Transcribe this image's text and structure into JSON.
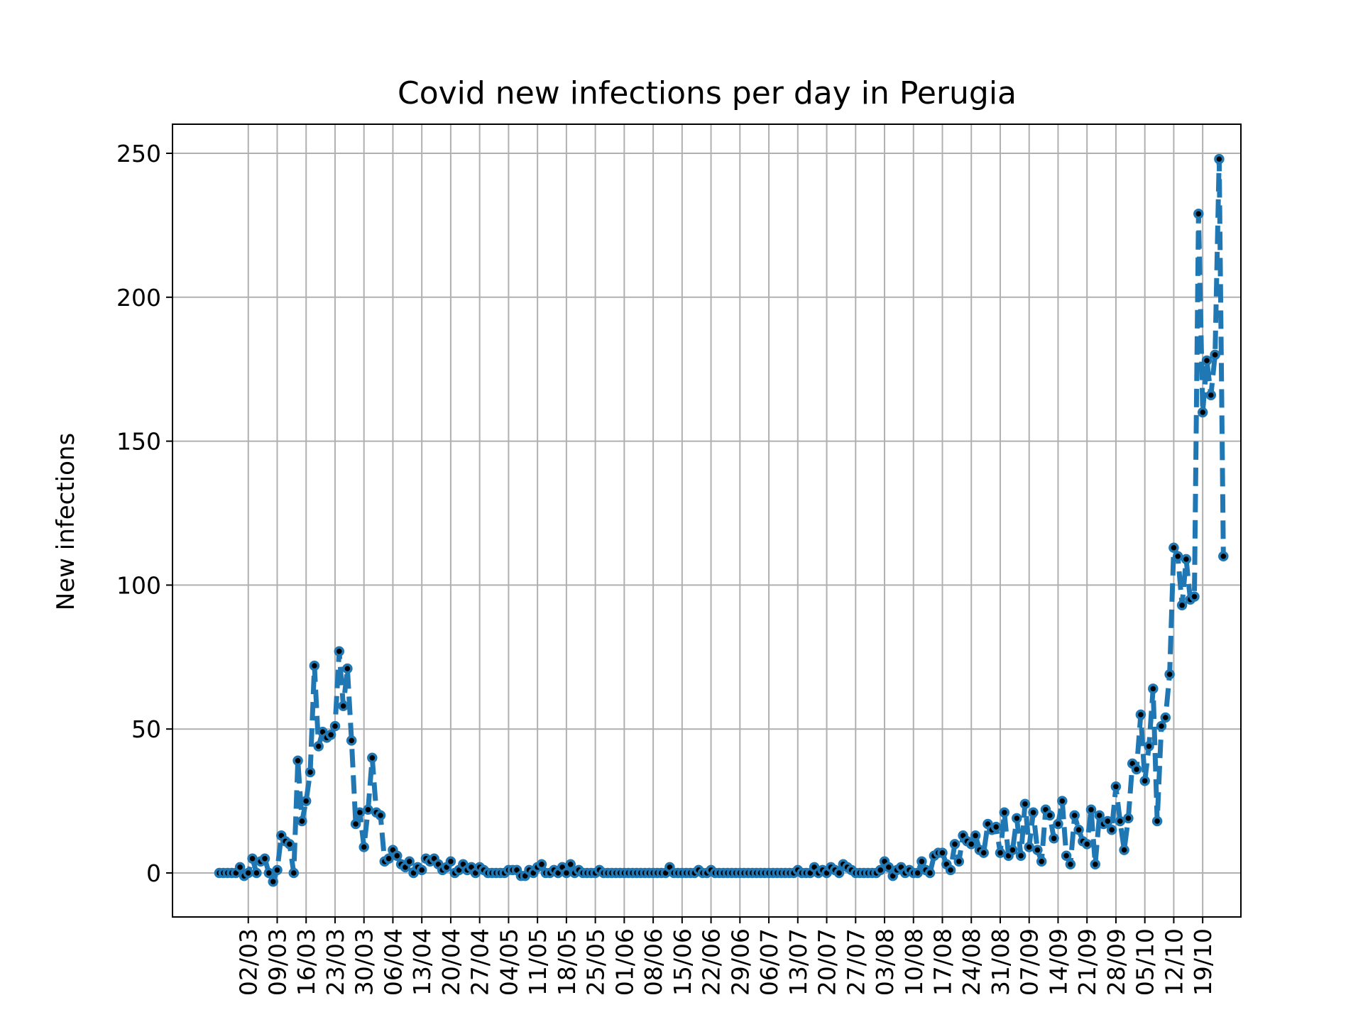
{
  "chart_data": {
    "type": "line",
    "title": "Covid new infections per day in Perugia",
    "xlabel": "",
    "ylabel": "New infections",
    "ylim": [
      -15,
      260
    ],
    "yticks": [
      0,
      50,
      100,
      150,
      200,
      250
    ],
    "grid": true,
    "x_start_date": "2020-02-24",
    "x_ticks": [
      "02/03",
      "09/03",
      "16/03",
      "23/03",
      "30/03",
      "06/04",
      "13/04",
      "20/04",
      "27/04",
      "04/05",
      "11/05",
      "18/05",
      "25/05",
      "01/06",
      "08/06",
      "15/06",
      "22/06",
      "29/06",
      "06/07",
      "13/07",
      "20/07",
      "27/07",
      "03/08",
      "10/08",
      "17/08",
      "24/08",
      "31/08",
      "07/09",
      "14/09",
      "21/09",
      "28/09",
      "05/10",
      "12/10",
      "19/10"
    ],
    "x_tick_offsets": [
      7,
      14,
      21,
      28,
      35,
      42,
      49,
      56,
      63,
      70,
      77,
      84,
      91,
      98,
      105,
      112,
      119,
      126,
      133,
      140,
      147,
      154,
      161,
      168,
      175,
      182,
      189,
      196,
      203,
      210,
      217,
      224,
      231,
      238
    ],
    "series": [
      {
        "name": "",
        "color": "#1f77b4",
        "marker_color": "#000000",
        "linestyle": "dashed",
        "values": [
          0,
          0,
          0,
          0,
          0,
          2,
          -1,
          0,
          5,
          0,
          4,
          5,
          0,
          -3,
          1,
          13,
          11,
          10,
          0,
          39,
          18,
          25,
          35,
          72,
          44,
          49,
          47,
          48,
          51,
          77,
          58,
          71,
          46,
          17,
          21,
          9,
          22,
          40,
          21,
          20,
          4,
          5,
          8,
          6,
          3,
          2,
          4,
          0,
          2,
          1,
          5,
          4,
          5,
          3,
          1,
          2,
          4,
          0,
          1,
          3,
          1,
          2,
          0,
          2,
          1,
          0,
          0,
          0,
          0,
          0,
          1,
          1,
          1,
          -1,
          -1,
          1,
          0,
          2,
          3,
          0,
          0,
          1,
          0,
          2,
          0,
          3,
          0,
          1,
          0,
          0,
          0,
          0,
          1,
          0,
          0,
          0,
          0,
          0,
          0,
          0,
          0,
          0,
          0,
          0,
          0,
          0,
          0,
          0,
          0,
          2,
          0,
          0,
          0,
          0,
          0,
          0,
          1,
          0,
          0,
          1,
          0,
          0,
          0,
          0,
          0,
          0,
          0,
          0,
          0,
          0,
          0,
          0,
          0,
          0,
          0,
          0,
          0,
          0,
          0,
          0,
          1,
          0,
          0,
          0,
          2,
          0,
          1,
          0,
          2,
          1,
          0,
          3,
          2,
          1,
          0,
          0,
          0,
          0,
          0,
          0,
          1,
          4,
          2,
          -1,
          1,
          2,
          0,
          1,
          0,
          0,
          4,
          1,
          0,
          6,
          7,
          7,
          3,
          1,
          10,
          4,
          13,
          11,
          10,
          13,
          8,
          7,
          17,
          15,
          16,
          7,
          21,
          6,
          8,
          19,
          6,
          24,
          9,
          21,
          8,
          4,
          22,
          20,
          12,
          17,
          25,
          6,
          3,
          20,
          15,
          11,
          10,
          22,
          3,
          20,
          17,
          18,
          15,
          30,
          18,
          8,
          19,
          38,
          36,
          55,
          32,
          44,
          64,
          18,
          51,
          54,
          69,
          113,
          110,
          93,
          109,
          95,
          96,
          229,
          160,
          178,
          166,
          180,
          248,
          110
        ]
      }
    ]
  }
}
